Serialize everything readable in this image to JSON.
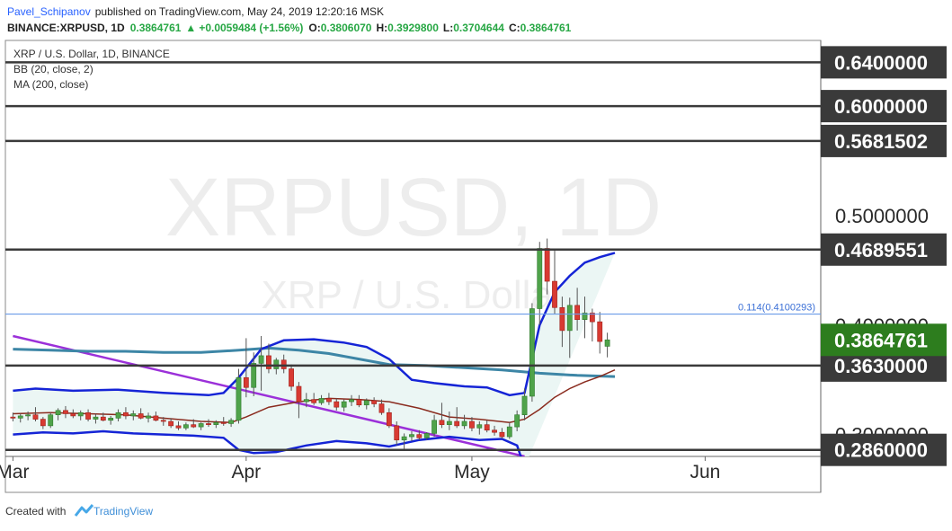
{
  "header": {
    "author": "Pavel_Schipanov",
    "published_text": "published on TradingView.com, May 24, 2019 12:20:16 MSK",
    "symbol": "BINANCE:XRPUSD, 1D",
    "last": "0.3864761",
    "change": "+0.0059484 (+1.56%)",
    "o_label": "O:",
    "o_value": "0.3806070",
    "h_label": "H:",
    "h_value": "0.3929800",
    "l_label": "L:",
    "l_value": "0.3704644",
    "c_label": "C:",
    "c_value": "0.3864761",
    "up_color": "#27a744"
  },
  "legend": {
    "title": "XRP / U.S. Dollar, 1D, BINANCE",
    "bb": "BB (20, close, 2)",
    "ma": "MA (200, close)"
  },
  "watermark": {
    "line1": "XRPUSD, 1D",
    "line2": "XRP / U.S. Dollar"
  },
  "footer": {
    "created_with": "Created with",
    "brand": "TradingView"
  },
  "price_axis": {
    "plain_labels": [
      "0.5000000",
      "0.4000000",
      "0.3000000"
    ],
    "tagged_levels": [
      {
        "price": 0.64,
        "label": "0.6400000"
      },
      {
        "price": 0.6,
        "label": "0.6000000"
      },
      {
        "price": 0.5681502,
        "label": "0.5681502"
      },
      {
        "price": 0.4689551,
        "label": "0.4689551"
      },
      {
        "price": 0.363,
        "label": "0.3630000"
      },
      {
        "price": 0.286,
        "label": "0.2860000"
      }
    ],
    "current": {
      "price": 0.3864761,
      "label": "0.3864761",
      "color": "#2d7d1e"
    },
    "tag_color": "#3a3a3a"
  },
  "fib_level": {
    "price": 0.4100293,
    "label": "0.114(0.4100293)",
    "color": "#6a9ce8"
  },
  "time_axis": {
    "labels": [
      "Mar",
      "Apr",
      "May",
      "Jun"
    ]
  },
  "chart_data": {
    "type": "candlestick",
    "title": "XRP / U.S. Dollar, 1D, BINANCE",
    "ylim": [
      0.28,
      0.66
    ],
    "x_range": [
      "2019-02-28",
      "2019-06-09"
    ],
    "start_date": "2019-03-01",
    "candles": [
      [
        0.316,
        0.32,
        0.312,
        0.315
      ],
      [
        0.315,
        0.319,
        0.311,
        0.317
      ],
      [
        0.317,
        0.321,
        0.313,
        0.318
      ],
      [
        0.318,
        0.325,
        0.312,
        0.314
      ],
      [
        0.314,
        0.316,
        0.305,
        0.308
      ],
      [
        0.308,
        0.32,
        0.306,
        0.318
      ],
      [
        0.318,
        0.324,
        0.313,
        0.322
      ],
      [
        0.322,
        0.326,
        0.315,
        0.319
      ],
      [
        0.319,
        0.323,
        0.315,
        0.317
      ],
      [
        0.317,
        0.322,
        0.313,
        0.32
      ],
      [
        0.32,
        0.323,
        0.312,
        0.314
      ],
      [
        0.314,
        0.319,
        0.31,
        0.316
      ],
      [
        0.316,
        0.32,
        0.312,
        0.313
      ],
      [
        0.313,
        0.317,
        0.309,
        0.315
      ],
      [
        0.315,
        0.323,
        0.312,
        0.32
      ],
      [
        0.32,
        0.325,
        0.314,
        0.317
      ],
      [
        0.317,
        0.322,
        0.313,
        0.319
      ],
      [
        0.319,
        0.324,
        0.314,
        0.315
      ],
      [
        0.315,
        0.32,
        0.311,
        0.317
      ],
      [
        0.317,
        0.321,
        0.312,
        0.313
      ],
      [
        0.313,
        0.316,
        0.308,
        0.312
      ],
      [
        0.312,
        0.315,
        0.306,
        0.308
      ],
      [
        0.308,
        0.312,
        0.304,
        0.306
      ],
      [
        0.306,
        0.311,
        0.304,
        0.309
      ],
      [
        0.309,
        0.314,
        0.306,
        0.307
      ],
      [
        0.307,
        0.311,
        0.304,
        0.31
      ],
      [
        0.31,
        0.314,
        0.307,
        0.309
      ],
      [
        0.309,
        0.313,
        0.306,
        0.311
      ],
      [
        0.311,
        0.316,
        0.308,
        0.31
      ],
      [
        0.31,
        0.315,
        0.307,
        0.313
      ],
      [
        0.313,
        0.36,
        0.31,
        0.352
      ],
      [
        0.352,
        0.388,
        0.334,
        0.343
      ],
      [
        0.343,
        0.375,
        0.335,
        0.365
      ],
      [
        0.365,
        0.39,
        0.34,
        0.372
      ],
      [
        0.372,
        0.383,
        0.356,
        0.36
      ],
      [
        0.36,
        0.37,
        0.355,
        0.368
      ],
      [
        0.368,
        0.373,
        0.356,
        0.36
      ],
      [
        0.36,
        0.364,
        0.34,
        0.344
      ],
      [
        0.344,
        0.348,
        0.315,
        0.33
      ],
      [
        0.33,
        0.338,
        0.325,
        0.332
      ],
      [
        0.332,
        0.338,
        0.327,
        0.329
      ],
      [
        0.329,
        0.336,
        0.327,
        0.333
      ],
      [
        0.333,
        0.338,
        0.327,
        0.33
      ],
      [
        0.33,
        0.333,
        0.322,
        0.325
      ],
      [
        0.325,
        0.332,
        0.321,
        0.33
      ],
      [
        0.33,
        0.336,
        0.326,
        0.332
      ],
      [
        0.332,
        0.336,
        0.325,
        0.327
      ],
      [
        0.327,
        0.333,
        0.323,
        0.331
      ],
      [
        0.331,
        0.334,
        0.325,
        0.328
      ],
      [
        0.328,
        0.332,
        0.318,
        0.32
      ],
      [
        0.32,
        0.324,
        0.306,
        0.308
      ],
      [
        0.308,
        0.312,
        0.29,
        0.295
      ],
      [
        0.295,
        0.301,
        0.287,
        0.298
      ],
      [
        0.298,
        0.303,
        0.294,
        0.3
      ],
      [
        0.3,
        0.304,
        0.295,
        0.297
      ],
      [
        0.297,
        0.302,
        0.295,
        0.301
      ],
      [
        0.301,
        0.318,
        0.298,
        0.313
      ],
      [
        0.313,
        0.329,
        0.306,
        0.309
      ],
      [
        0.309,
        0.321,
        0.304,
        0.312
      ],
      [
        0.312,
        0.325,
        0.306,
        0.308
      ],
      [
        0.308,
        0.318,
        0.305,
        0.312
      ],
      [
        0.312,
        0.316,
        0.303,
        0.306
      ],
      [
        0.306,
        0.312,
        0.3,
        0.309
      ],
      [
        0.309,
        0.313,
        0.302,
        0.304
      ],
      [
        0.304,
        0.308,
        0.299,
        0.302
      ],
      [
        0.302,
        0.306,
        0.296,
        0.298
      ],
      [
        0.298,
        0.311,
        0.296,
        0.307
      ],
      [
        0.307,
        0.322,
        0.303,
        0.318
      ],
      [
        0.318,
        0.342,
        0.313,
        0.335
      ],
      [
        0.335,
        0.42,
        0.33,
        0.415
      ],
      [
        0.415,
        0.476,
        0.4,
        0.47
      ],
      [
        0.47,
        0.479,
        0.428,
        0.44
      ],
      [
        0.44,
        0.468,
        0.41,
        0.416
      ],
      [
        0.416,
        0.426,
        0.38,
        0.395
      ],
      [
        0.395,
        0.425,
        0.37,
        0.418
      ],
      [
        0.418,
        0.434,
        0.395,
        0.405
      ],
      [
        0.405,
        0.426,
        0.388,
        0.411
      ],
      [
        0.411,
        0.415,
        0.385,
        0.403
      ],
      [
        0.403,
        0.412,
        0.374,
        0.385
      ],
      [
        0.3806,
        0.393,
        0.3705,
        0.3865
      ]
    ],
    "bb_upper": [
      [
        0,
        0.34
      ],
      [
        3,
        0.342
      ],
      [
        8,
        0.34
      ],
      [
        14,
        0.341
      ],
      [
        20,
        0.338
      ],
      [
        26,
        0.336
      ],
      [
        28,
        0.338
      ],
      [
        30,
        0.352
      ],
      [
        33,
        0.378
      ],
      [
        36,
        0.386
      ],
      [
        40,
        0.387
      ],
      [
        44,
        0.384
      ],
      [
        47,
        0.38
      ],
      [
        50,
        0.369
      ],
      [
        53,
        0.35
      ],
      [
        56,
        0.347
      ],
      [
        60,
        0.344
      ],
      [
        63,
        0.343
      ],
      [
        66,
        0.336
      ],
      [
        68,
        0.338
      ],
      [
        70,
        0.4
      ],
      [
        72,
        0.43
      ],
      [
        74,
        0.445
      ],
      [
        76,
        0.457
      ],
      [
        78,
        0.462
      ],
      [
        80,
        0.466
      ]
    ],
    "bb_lower": [
      [
        0,
        0.3
      ],
      [
        4,
        0.302
      ],
      [
        8,
        0.301
      ],
      [
        12,
        0.303
      ],
      [
        16,
        0.301
      ],
      [
        20,
        0.3
      ],
      [
        24,
        0.299
      ],
      [
        28,
        0.297
      ],
      [
        30,
        0.286
      ],
      [
        32,
        0.283
      ],
      [
        35,
        0.284
      ],
      [
        39,
        0.29
      ],
      [
        43,
        0.294
      ],
      [
        47,
        0.292
      ],
      [
        50,
        0.289
      ],
      [
        54,
        0.295
      ],
      [
        58,
        0.298
      ],
      [
        62,
        0.295
      ],
      [
        65,
        0.296
      ],
      [
        67,
        0.29
      ],
      [
        68,
        0.27
      ]
    ],
    "bb_basis": [
      [
        0,
        0.319
      ],
      [
        5,
        0.32
      ],
      [
        10,
        0.319
      ],
      [
        15,
        0.318
      ],
      [
        20,
        0.315
      ],
      [
        25,
        0.312
      ],
      [
        29,
        0.311
      ],
      [
        31,
        0.316
      ],
      [
        34,
        0.325
      ],
      [
        38,
        0.33
      ],
      [
        42,
        0.333
      ],
      [
        46,
        0.332
      ],
      [
        50,
        0.33
      ],
      [
        54,
        0.324
      ],
      [
        58,
        0.316
      ],
      [
        62,
        0.314
      ],
      [
        66,
        0.311
      ],
      [
        68,
        0.314
      ],
      [
        70,
        0.323
      ],
      [
        72,
        0.334
      ],
      [
        74,
        0.342
      ],
      [
        76,
        0.348
      ],
      [
        78,
        0.353
      ],
      [
        80,
        0.359
      ]
    ],
    "ma200": [
      [
        0,
        0.378
      ],
      [
        5,
        0.377
      ],
      [
        10,
        0.376
      ],
      [
        15,
        0.376
      ],
      [
        20,
        0.375
      ],
      [
        25,
        0.375
      ],
      [
        30,
        0.377
      ],
      [
        34,
        0.379
      ],
      [
        38,
        0.377
      ],
      [
        42,
        0.374
      ],
      [
        46,
        0.369
      ],
      [
        50,
        0.364
      ],
      [
        55,
        0.363
      ],
      [
        60,
        0.361
      ],
      [
        65,
        0.359
      ],
      [
        70,
        0.356
      ],
      [
        75,
        0.354
      ],
      [
        80,
        0.353
      ]
    ],
    "trendline": {
      "x": [
        0,
        68
      ],
      "y": [
        0.39,
        0.28
      ],
      "color": "#9b30d9"
    }
  }
}
